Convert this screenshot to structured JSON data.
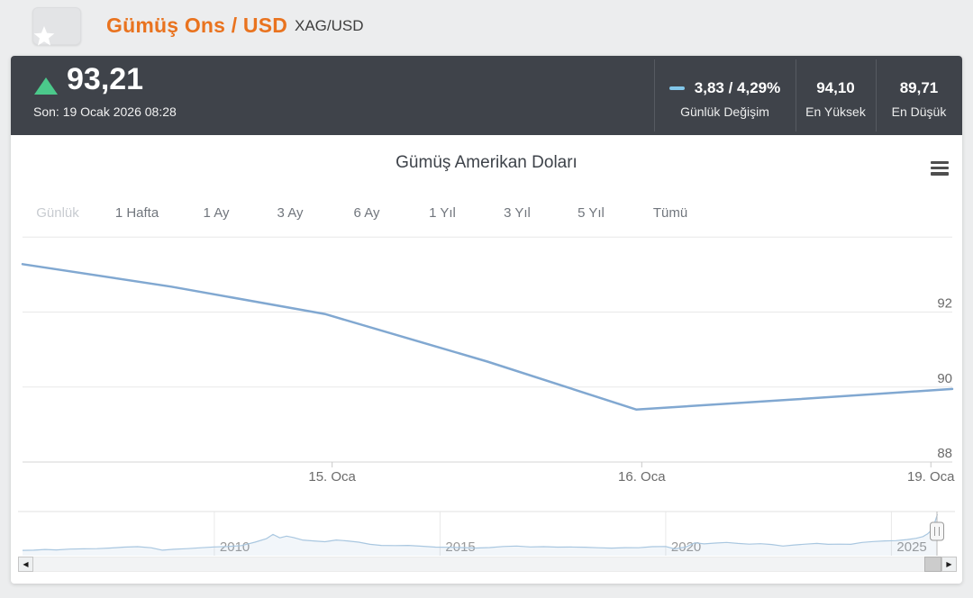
{
  "header": {
    "title": "Gümüş Ons / USD",
    "symbol": "XAG/USD"
  },
  "stats": {
    "price": "93,21",
    "last": "Son: 19 Ocak 2026 08:28",
    "change": {
      "value": "3,83 / 4,29%",
      "label": "Günlük Değişim"
    },
    "high": {
      "value": "94,10",
      "label": "En Yüksek"
    },
    "low": {
      "value": "89,71",
      "label": "En Düşük"
    }
  },
  "chart": {
    "title": "Gümüş Amerikan Doları",
    "ranges": [
      "Günlük",
      "1 Hafta",
      "1 Ay",
      "3 Ay",
      "6 Ay",
      "1 Yıl",
      "3 Yıl",
      "5 Yıl",
      "Tümü"
    ],
    "active_range": "Günlük"
  },
  "colors": {
    "accent_orange": "#e9731f",
    "up_green": "#4bc98b",
    "change_dash": "#82c7ea",
    "dark_bar": "#3f434a",
    "main_line": "#81a8d1",
    "nav_line": "#a9c7e0",
    "grid": "#e8e8e8",
    "axis_label": "#6b6b6b"
  },
  "chart_data": {
    "type": "line",
    "title": "Gümüş Amerikan Doları",
    "legend": "off",
    "grid": "horizontal",
    "main": {
      "name": "XAG/USD",
      "color": "#81a8d1",
      "ylim": [
        88,
        94.2
      ],
      "y_ticks": [
        {
          "v": 94,
          "label": ""
        },
        {
          "v": 92,
          "label": "92"
        },
        {
          "v": 90,
          "label": "90"
        },
        {
          "v": 88,
          "label": "88"
        }
      ],
      "x_ticks": [
        {
          "t": 0.333,
          "label": "15. Oca"
        },
        {
          "t": 0.666,
          "label": "16. Oca"
        },
        {
          "t": 0.977,
          "label": "19. Oca"
        }
      ],
      "points": [
        [
          0.0,
          93.28
        ],
        [
          0.16,
          92.68
        ],
        [
          0.325,
          91.95
        ],
        [
          0.5,
          90.68
        ],
        [
          0.66,
          89.4
        ],
        [
          0.83,
          89.67
        ],
        [
          1.0,
          89.95
        ]
      ]
    },
    "navigator": {
      "color": "#a9c7e0",
      "xlim": [
        2005.75,
        2026.35
      ],
      "ylim": [
        5,
        95
      ],
      "x_ticks": [
        {
          "year": 2010,
          "label": "2010"
        },
        {
          "year": 2015,
          "label": "2015"
        },
        {
          "year": 2020,
          "label": "2020"
        },
        {
          "year": 2025,
          "label": "2025"
        }
      ],
      "points": [
        [
          2005.75,
          9
        ],
        [
          2006.0,
          9.5
        ],
        [
          2006.25,
          11
        ],
        [
          2006.5,
          10
        ],
        [
          2006.8,
          12
        ],
        [
          2007.1,
          12.5
        ],
        [
          2007.4,
          13
        ],
        [
          2007.7,
          14.5
        ],
        [
          2008.0,
          16.5
        ],
        [
          2008.3,
          17.5
        ],
        [
          2008.6,
          15
        ],
        [
          2008.85,
          9.5
        ],
        [
          2009.1,
          11.5
        ],
        [
          2009.4,
          13
        ],
        [
          2009.7,
          15
        ],
        [
          2010.0,
          17
        ],
        [
          2010.3,
          18
        ],
        [
          2010.6,
          20
        ],
        [
          2010.9,
          28
        ],
        [
          2011.15,
          36
        ],
        [
          2011.3,
          46
        ],
        [
          2011.45,
          38
        ],
        [
          2011.6,
          42
        ],
        [
          2011.75,
          39
        ],
        [
          2011.95,
          33
        ],
        [
          2012.2,
          31
        ],
        [
          2012.45,
          29
        ],
        [
          2012.7,
          33
        ],
        [
          2012.95,
          31
        ],
        [
          2013.2,
          28
        ],
        [
          2013.45,
          23
        ],
        [
          2013.7,
          20.5
        ],
        [
          2014.0,
          20
        ],
        [
          2014.3,
          20.5
        ],
        [
          2014.6,
          18.5
        ],
        [
          2014.9,
          16.5
        ],
        [
          2015.2,
          16
        ],
        [
          2015.5,
          15.5
        ],
        [
          2015.8,
          14.5
        ],
        [
          2016.1,
          15.5
        ],
        [
          2016.4,
          18
        ],
        [
          2016.7,
          19
        ],
        [
          2017.0,
          17
        ],
        [
          2017.3,
          17.5
        ],
        [
          2017.6,
          16.5
        ],
        [
          2017.9,
          16.8
        ],
        [
          2018.2,
          16.3
        ],
        [
          2018.5,
          15
        ],
        [
          2018.8,
          14.3
        ],
        [
          2019.1,
          15.2
        ],
        [
          2019.4,
          15
        ],
        [
          2019.7,
          17.5
        ],
        [
          2020.0,
          18
        ],
        [
          2020.2,
          12.5
        ],
        [
          2020.45,
          17
        ],
        [
          2020.65,
          26.5
        ],
        [
          2020.85,
          24
        ],
        [
          2021.1,
          26
        ],
        [
          2021.35,
          27.5
        ],
        [
          2021.6,
          25
        ],
        [
          2021.85,
          23.5
        ],
        [
          2022.1,
          24.5
        ],
        [
          2022.35,
          22.5
        ],
        [
          2022.6,
          19
        ],
        [
          2022.85,
          21.5
        ],
        [
          2023.1,
          23.5
        ],
        [
          2023.35,
          25
        ],
        [
          2023.6,
          23
        ],
        [
          2023.85,
          23.5
        ],
        [
          2024.1,
          23
        ],
        [
          2024.35,
          27.5
        ],
        [
          2024.6,
          29.5
        ],
        [
          2024.85,
          31
        ],
        [
          2025.1,
          31.5
        ],
        [
          2025.35,
          34
        ],
        [
          2025.55,
          37
        ],
        [
          2025.7,
          41
        ],
        [
          2025.8,
          47
        ],
        [
          2025.88,
          55
        ],
        [
          2025.95,
          70
        ],
        [
          2026.02,
          93
        ]
      ]
    }
  }
}
